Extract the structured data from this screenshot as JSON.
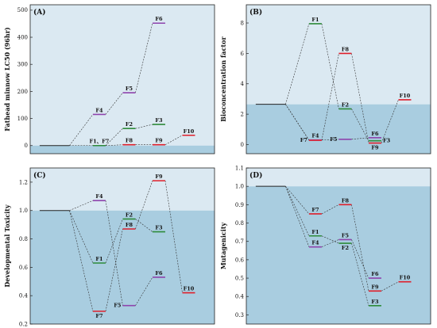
{
  "colors": {
    "bg_light": "#dbe9f2",
    "bg_dark": "#a9cde0",
    "frame": "#222222",
    "base_line": "#222222",
    "connector": "#333333",
    "purple": "#8e44ad",
    "green": "#2e8b3a",
    "red": "#e01e2a"
  },
  "chart_data": [
    {
      "type": "line",
      "panel": "(A)",
      "ylabel": "Fathead minnow LC50 (96hr)",
      "ylim": [
        -30,
        520
      ],
      "yticks": [
        0,
        100,
        200,
        300,
        400,
        500
      ],
      "baseline": 0,
      "base_segment": {
        "x": [
          0,
          1
        ],
        "y": 0
      },
      "points": [
        {
          "name": "F1、F7",
          "x": 2,
          "y": 0,
          "color": "green",
          "label_pos": "above"
        },
        {
          "name": "F4",
          "x": 2,
          "y": 115,
          "color": "purple",
          "label_pos": "above"
        },
        {
          "name": "F2",
          "x": 3,
          "y": 63,
          "color": "green",
          "label_pos": "above"
        },
        {
          "name": "F5",
          "x": 3,
          "y": 195,
          "color": "purple",
          "label_pos": "above"
        },
        {
          "name": "F8",
          "x": 3,
          "y": 3,
          "color": "red",
          "label_pos": "above"
        },
        {
          "name": "F3",
          "x": 4,
          "y": 78,
          "color": "green",
          "label_pos": "above"
        },
        {
          "name": "F6",
          "x": 4,
          "y": 452,
          "color": "purple",
          "label_pos": "above"
        },
        {
          "name": "F9",
          "x": 4,
          "y": 3,
          "color": "red",
          "label_pos": "above"
        },
        {
          "name": "F10",
          "x": 5,
          "y": 38,
          "color": "red",
          "label_pos": "above"
        }
      ],
      "paths": [
        [
          "base",
          "F4",
          "F5",
          "F6"
        ],
        [
          "base",
          "F1、F7",
          "F2",
          "F3"
        ],
        [
          "base",
          "F1、F7",
          "F8",
          "F9",
          "F10"
        ]
      ]
    },
    {
      "type": "line",
      "panel": "(B)",
      "ylabel": "Bioconcentration factor",
      "ylim": [
        -0.6,
        9.2
      ],
      "yticks": [
        0,
        2,
        4,
        6,
        8
      ],
      "baseline": 2.65,
      "base_segment": {
        "x": [
          0,
          1
        ],
        "y": 2.65
      },
      "points": [
        {
          "name": "F1",
          "x": 2,
          "y": 7.95,
          "color": "green",
          "label_pos": "above"
        },
        {
          "name": "F4",
          "x": 2,
          "y": 0.3,
          "color": "purple",
          "label_pos": "above"
        },
        {
          "name": "F7",
          "x": 2,
          "y": 0.28,
          "color": "red",
          "label_pos": "left"
        },
        {
          "name": "F8",
          "x": 3,
          "y": 6.0,
          "color": "red",
          "label_pos": "above"
        },
        {
          "name": "F2",
          "x": 3,
          "y": 2.35,
          "color": "green",
          "label_pos": "above"
        },
        {
          "name": "F5",
          "x": 3,
          "y": 0.35,
          "color": "purple",
          "label_pos": "left"
        },
        {
          "name": "F6",
          "x": 4,
          "y": 0.45,
          "color": "purple",
          "label_pos": "above"
        },
        {
          "name": "F3",
          "x": 4,
          "y": 0.25,
          "color": "green",
          "label_pos": "right"
        },
        {
          "name": "F9",
          "x": 4,
          "y": 0.1,
          "color": "red",
          "label_pos": "below"
        },
        {
          "name": "F10",
          "x": 5,
          "y": 2.95,
          "color": "red",
          "label_pos": "above"
        }
      ],
      "paths": [
        [
          "base",
          "F1",
          "F2",
          "F3"
        ],
        [
          "base",
          "F4",
          "F5",
          "F6"
        ],
        [
          "base",
          "F7",
          "F8",
          "F9",
          "F10"
        ]
      ]
    },
    {
      "type": "line",
      "panel": "(C)",
      "ylabel": "Developmental Toxicity",
      "ylim": [
        0.2,
        1.3
      ],
      "yticks": [
        0.2,
        0.4,
        0.6,
        0.8,
        1.0,
        1.2
      ],
      "baseline": 1.0,
      "base_segment": {
        "x": [
          0,
          1
        ],
        "y": 1.0
      },
      "points": [
        {
          "name": "F4",
          "x": 2,
          "y": 1.07,
          "color": "purple",
          "label_pos": "above"
        },
        {
          "name": "F1",
          "x": 2,
          "y": 0.63,
          "color": "green",
          "label_pos": "above"
        },
        {
          "name": "F7",
          "x": 2,
          "y": 0.29,
          "color": "red",
          "label_pos": "below"
        },
        {
          "name": "F2",
          "x": 3,
          "y": 0.94,
          "color": "green",
          "label_pos": "above"
        },
        {
          "name": "F8",
          "x": 3,
          "y": 0.87,
          "color": "red",
          "label_pos": "above"
        },
        {
          "name": "F5",
          "x": 3,
          "y": 0.33,
          "color": "purple",
          "label_pos": "left"
        },
        {
          "name": "F9",
          "x": 4,
          "y": 1.21,
          "color": "red",
          "label_pos": "above"
        },
        {
          "name": "F3",
          "x": 4,
          "y": 0.85,
          "color": "green",
          "label_pos": "above"
        },
        {
          "name": "F6",
          "x": 4,
          "y": 0.53,
          "color": "purple",
          "label_pos": "above"
        },
        {
          "name": "F10",
          "x": 5,
          "y": 0.42,
          "color": "red",
          "label_pos": "above"
        }
      ],
      "paths": [
        [
          "base",
          "F4",
          "F5",
          "F6"
        ],
        [
          "base",
          "F1",
          "F2",
          "F3"
        ],
        [
          "base",
          "F7",
          "F8",
          "F9",
          "F10"
        ]
      ]
    },
    {
      "type": "line",
      "panel": "(D)",
      "ylabel": "Mutagenicity",
      "ylim": [
        0.25,
        1.1
      ],
      "yticks": [
        0.3,
        0.4,
        0.5,
        0.6,
        0.7,
        0.8,
        0.9,
        1.0,
        1.1
      ],
      "baseline": 1.0,
      "base_segment": {
        "x": [
          0,
          1
        ],
        "y": 1.0
      },
      "points": [
        {
          "name": "F7",
          "x": 2,
          "y": 0.85,
          "color": "red",
          "label_pos": "above"
        },
        {
          "name": "F1",
          "x": 2,
          "y": 0.73,
          "color": "green",
          "label_pos": "above"
        },
        {
          "name": "F4",
          "x": 2,
          "y": 0.67,
          "color": "purple",
          "label_pos": "above"
        },
        {
          "name": "F8",
          "x": 3,
          "y": 0.9,
          "color": "red",
          "label_pos": "above"
        },
        {
          "name": "F5",
          "x": 3,
          "y": 0.71,
          "color": "purple",
          "label_pos": "above"
        },
        {
          "name": "F2",
          "x": 3,
          "y": 0.69,
          "color": "green",
          "label_pos": "below"
        },
        {
          "name": "F6",
          "x": 4,
          "y": 0.5,
          "color": "purple",
          "label_pos": "above"
        },
        {
          "name": "F9",
          "x": 4,
          "y": 0.43,
          "color": "red",
          "label_pos": "above"
        },
        {
          "name": "F3",
          "x": 4,
          "y": 0.35,
          "color": "green",
          "label_pos": "above"
        },
        {
          "name": "F10",
          "x": 5,
          "y": 0.48,
          "color": "red",
          "label_pos": "above"
        }
      ],
      "paths": [
        [
          "base",
          "F7",
          "F8",
          "F9",
          "F10"
        ],
        [
          "base",
          "F1",
          "F2",
          "F3"
        ],
        [
          "base",
          "F4",
          "F5",
          "F6"
        ]
      ]
    }
  ]
}
